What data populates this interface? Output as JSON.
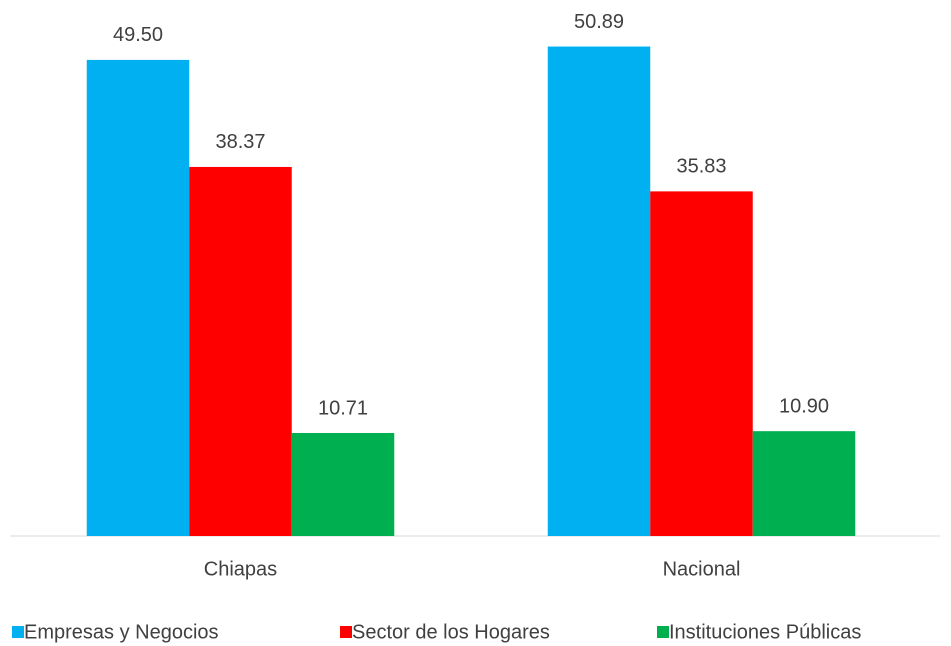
{
  "chart_data": {
    "type": "bar",
    "categories": [
      "Chiapas",
      "Nacional"
    ],
    "series": [
      {
        "name": "Empresas y Negocios",
        "color": "#00b0f0",
        "values": [
          49.5,
          50.89
        ],
        "value_labels": [
          "49.50",
          "50.89"
        ]
      },
      {
        "name": "Sector de los Hogares",
        "color": "#ff0000",
        "values": [
          38.37,
          35.83
        ],
        "value_labels": [
          "38.37",
          "35.83"
        ]
      },
      {
        "name": "Instituciones Públicas",
        "color": "#00b050",
        "values": [
          10.71,
          10.9
        ],
        "value_labels": [
          "10.71",
          "10.90"
        ]
      }
    ],
    "ylim": [
      0,
      55
    ],
    "legend": "bottom"
  }
}
